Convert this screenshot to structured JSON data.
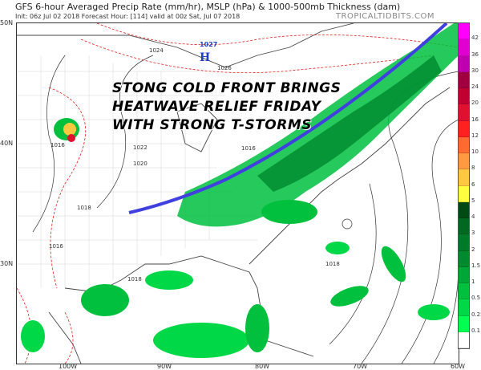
{
  "header": {
    "title": "GFS 6-hour Averaged Precip Rate (mm/hr), MSLP (hPa) & 1000-500mb Thickness (dam)",
    "subtitle": "Init: 06z Jul 02 2018   Forecast Hour: [114]   valid at 00z Sat, Jul 07 2018",
    "brand": "TROPICALTIDBITS.COM"
  },
  "headline": {
    "line1": "STONG COLD FRONT BRINGS",
    "line2": "HEATWAVE RELIEF FRIDAY",
    "line3": "WITH STRONG T-STORMS"
  },
  "axes": {
    "lat_labels": [
      "50N",
      "40N",
      "30N"
    ],
    "lon_labels": [
      "100W",
      "90W",
      "80W",
      "70W",
      "60W"
    ]
  },
  "map_labels": {
    "high_center": "H",
    "high_pressure": "1027",
    "isobars": [
      "1024",
      "1026",
      "1016",
      "1022",
      "1020",
      "1018",
      "1016",
      "1018",
      "1018",
      "1016"
    ]
  },
  "colorbar": {
    "labels": [
      "42",
      "36",
      "30",
      "24",
      "20",
      "16",
      "12",
      "10",
      "8",
      "6",
      "5",
      "4",
      "3",
      "2",
      "1.5",
      "1",
      "0.5",
      "0.25",
      "0.1"
    ],
    "colors": [
      "#ff00ff",
      "#e000d0",
      "#c000b0",
      "#a00040",
      "#c00030",
      "#e01030",
      "#ff2020",
      "#ff6a30",
      "#ff9a40",
      "#ffc840",
      "#ffff40",
      "#004a14",
      "#006820",
      "#007a28",
      "#008a2e",
      "#00a636",
      "#00c03e",
      "#00d848",
      "#00ff50",
      "#ffffff"
    ]
  },
  "colors": {
    "front": "#4040e0",
    "thickness": "#e02020",
    "isobar": "#333333"
  }
}
